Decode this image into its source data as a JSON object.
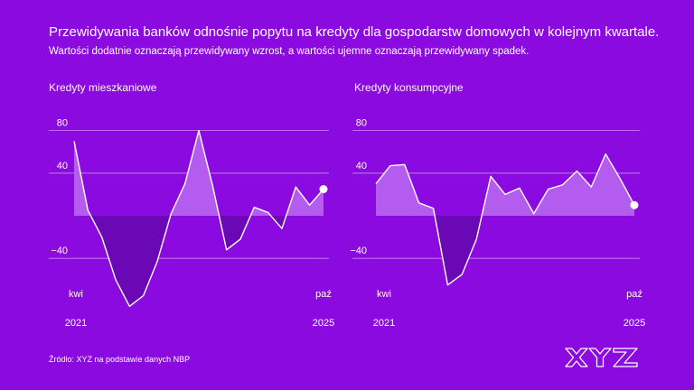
{
  "title": "Przewidywania banków odnośnie popytu na kredyty dla gospodarstw domowych w kolejnym kwartale.",
  "subtitle": "Wartości dodatnie oznaczają przewidywany wzrost, a wartości ujemne oznaczają przewidywany spadek.",
  "source": "Źródło: XYZ na podstawie danych NBP",
  "logo_text": "XYZ",
  "colors": {
    "background": "#8a0ae0",
    "positive_fill": "#b55cf0",
    "negative_fill": "#6a08b6",
    "line": "#ffffff",
    "grid": "#c98ef5"
  },
  "chart_data": [
    {
      "type": "area",
      "title": "Kredyty mieszkaniowe",
      "x_start_label": [
        "kwi",
        "2021"
      ],
      "x_end_label": [
        "paź",
        "2025"
      ],
      "y_ticks": [
        80,
        40,
        -40
      ],
      "ylim": [
        -90,
        90
      ],
      "values": [
        70,
        5,
        -20,
        -60,
        -85,
        -75,
        -43,
        2,
        30,
        80,
        28,
        -32,
        -22,
        8,
        3,
        -12,
        27,
        10,
        25
      ],
      "grid": true
    },
    {
      "type": "area",
      "title": "Kredyty konsumpcyjne",
      "x_start_label": [
        "kwi",
        "2021"
      ],
      "x_end_label": [
        "paź",
        "2025"
      ],
      "y_ticks": [
        80,
        40,
        -40
      ],
      "ylim": [
        -90,
        90
      ],
      "values": [
        30,
        47,
        48,
        12,
        7,
        -65,
        -55,
        -22,
        37,
        20,
        26,
        2,
        25,
        29,
        42,
        27,
        58,
        35,
        10
      ],
      "grid": true
    }
  ]
}
